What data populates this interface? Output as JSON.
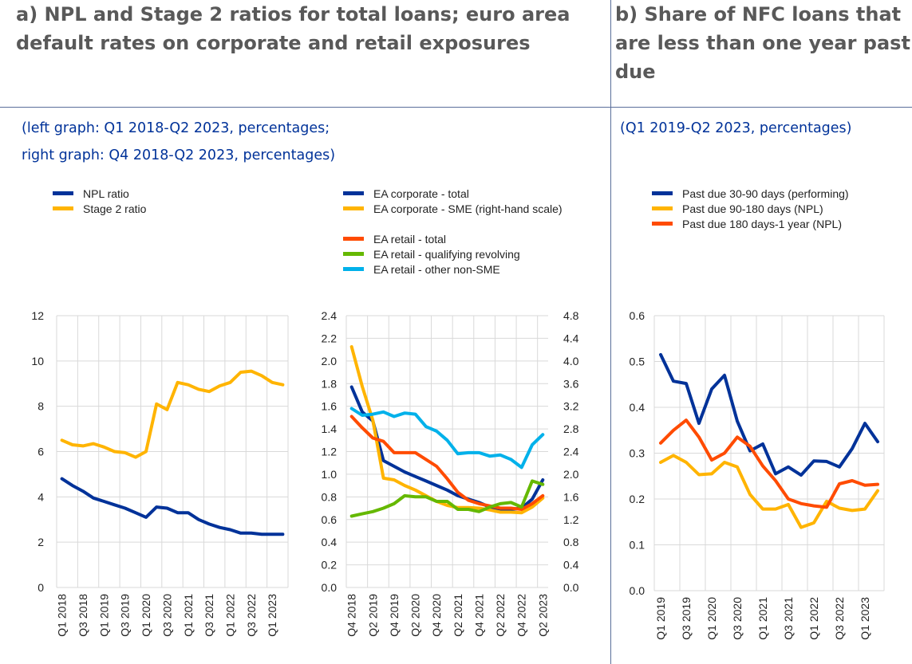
{
  "panels": {
    "a": {
      "title_lines": [
        "a) NPL and Stage 2 ratios for total loans; euro area",
        "default rates on corporate and retail exposures"
      ],
      "subtitle_lines": [
        "(left graph: Q1 2018-Q2 2023, percentages;",
        "right graph: Q4 2018-Q2 2023, percentages)"
      ]
    },
    "b": {
      "title_lines": [
        "b) Share of NFC loans that",
        "are less than one year past",
        "due"
      ],
      "subtitle_lines": [
        "(Q1 2019-Q2 2023, percentages)"
      ]
    }
  },
  "chart_data": [
    {
      "id": "npl-stage2",
      "type": "line",
      "title": "",
      "xlabel": "",
      "ylabel": "",
      "ylim": [
        0,
        12
      ],
      "yticks": [
        0,
        2,
        4,
        6,
        8,
        10,
        12
      ],
      "ytick_labels": [
        "0",
        "2",
        "4",
        "6",
        "8",
        "10",
        "12"
      ],
      "grid": true,
      "legend": "top-left",
      "x": [
        "Q1 2018",
        "Q2 2018",
        "Q3 2018",
        "Q4 2018",
        "Q1 2019",
        "Q2 2019",
        "Q3 2019",
        "Q4 2019",
        "Q1 2020",
        "Q2 2020",
        "Q3 2020",
        "Q4 2020",
        "Q1 2021",
        "Q2 2021",
        "Q3 2021",
        "Q4 2021",
        "Q1 2022",
        "Q2 2022",
        "Q3 2022",
        "Q4 2022",
        "Q1 2023",
        "Q2 2023"
      ],
      "xtick_labels": [
        "Q1 2018",
        "Q3 2018",
        "Q1 2019",
        "Q3 2019",
        "Q1 2020",
        "Q3 2020",
        "Q1 2021",
        "Q3 2021",
        "Q1 2022",
        "Q3 2022",
        "Q1 2023"
      ],
      "series": [
        {
          "name": "NPL ratio",
          "color": "#003299",
          "axis": "left",
          "values": [
            4.8,
            4.5,
            4.25,
            3.95,
            3.8,
            3.65,
            3.5,
            3.3,
            3.1,
            3.55,
            3.5,
            3.3,
            3.3,
            3.0,
            2.8,
            2.65,
            2.55,
            2.4,
            2.4,
            2.35,
            2.35,
            2.35
          ]
        },
        {
          "name": "Stage 2 ratio",
          "color": "#ffb400",
          "axis": "left",
          "values": [
            6.5,
            6.3,
            6.25,
            6.35,
            6.2,
            6.0,
            5.95,
            5.75,
            6.0,
            8.1,
            7.85,
            9.05,
            8.95,
            8.75,
            8.65,
            8.9,
            9.05,
            9.5,
            9.55,
            9.35,
            9.05,
            8.95
          ]
        }
      ]
    },
    {
      "id": "default-rates",
      "type": "line",
      "title": "",
      "xlabel": "",
      "ylabel": "",
      "ylim": [
        0,
        2.4
      ],
      "y2lim": [
        0,
        4.8
      ],
      "yticks": [
        0,
        0.2,
        0.4,
        0.6,
        0.8,
        1.0,
        1.2,
        1.4,
        1.6,
        1.8,
        2.0,
        2.2,
        2.4
      ],
      "ytick_labels": [
        "0.0",
        "0.2",
        "0.4",
        "0.6",
        "0.8",
        "1.0",
        "1.2",
        "1.4",
        "1.6",
        "1.8",
        "2.0",
        "2.2",
        "2.4"
      ],
      "y2ticks": [
        0,
        0.4,
        0.8,
        1.2,
        1.6,
        2.0,
        2.4,
        2.8,
        3.2,
        3.6,
        4.0,
        4.4,
        4.8
      ],
      "y2tick_labels": [
        "0.0",
        "0.4",
        "0.8",
        "1.2",
        "1.6",
        "2.0",
        "2.4",
        "2.8",
        "3.2",
        "3.6",
        "4.0",
        "4.4",
        "4.8"
      ],
      "grid": true,
      "legend": "top",
      "x": [
        "Q4 2018",
        "Q1 2019",
        "Q2 2019",
        "Q3 2019",
        "Q4 2019",
        "Q1 2020",
        "Q2 2020",
        "Q3 2020",
        "Q4 2020",
        "Q1 2021",
        "Q2 2021",
        "Q3 2021",
        "Q4 2021",
        "Q1 2022",
        "Q2 2022",
        "Q3 2022",
        "Q4 2022",
        "Q1 2023",
        "Q2 2023"
      ],
      "xtick_labels": [
        "Q4 2018",
        "Q2 2019",
        "Q4 2019",
        "Q2 2020",
        "Q4 2020",
        "Q2 2021",
        "Q4 2021",
        "Q2 2022",
        "Q4 2022",
        "Q2 2023"
      ],
      "series": [
        {
          "name": "EA corporate - total",
          "color": "#003299",
          "axis": "left",
          "values": [
            1.77,
            1.55,
            1.47,
            1.12,
            1.07,
            1.02,
            0.98,
            0.94,
            0.9,
            0.86,
            0.81,
            0.78,
            0.75,
            0.71,
            0.69,
            0.69,
            0.7,
            0.78,
            0.95
          ]
        },
        {
          "name": "EA corporate - SME (right-hand scale)",
          "color": "#ffb400",
          "axis": "right",
          "values": [
            4.25,
            3.55,
            2.95,
            1.93,
            1.9,
            1.8,
            1.72,
            1.62,
            1.52,
            1.45,
            1.41,
            1.41,
            1.4,
            1.37,
            1.33,
            1.33,
            1.32,
            1.42,
            1.58
          ]
        },
        {
          "name": "EA retail - total",
          "color": "#ff4b00",
          "axis": "left",
          "values": [
            1.51,
            1.41,
            1.32,
            1.29,
            1.19,
            1.19,
            1.19,
            1.13,
            1.07,
            0.96,
            0.84,
            0.77,
            0.74,
            0.72,
            0.7,
            0.7,
            0.69,
            0.74,
            0.81
          ]
        },
        {
          "name": "EA retail - qualifying revolving",
          "color": "#65b800",
          "axis": "left",
          "values": [
            0.63,
            0.65,
            0.67,
            0.7,
            0.74,
            0.81,
            0.8,
            0.8,
            0.76,
            0.76,
            0.69,
            0.69,
            0.67,
            0.71,
            0.74,
            0.75,
            0.71,
            0.94,
            0.91
          ]
        },
        {
          "name": "EA retail - other non-SME",
          "color": "#00b1ea",
          "axis": "left",
          "values": [
            1.58,
            1.52,
            1.53,
            1.55,
            1.51,
            1.54,
            1.53,
            1.42,
            1.38,
            1.3,
            1.18,
            1.19,
            1.19,
            1.16,
            1.17,
            1.13,
            1.06,
            1.26,
            1.35
          ]
        }
      ]
    },
    {
      "id": "past-due",
      "type": "line",
      "title": "",
      "xlabel": "",
      "ylabel": "",
      "ylim": [
        0,
        0.6
      ],
      "yticks": [
        0,
        0.1,
        0.2,
        0.3,
        0.4,
        0.5,
        0.6
      ],
      "ytick_labels": [
        "0.0",
        "0.1",
        "0.2",
        "0.3",
        "0.4",
        "0.5",
        "0.6"
      ],
      "grid": true,
      "legend": "top",
      "x": [
        "Q1 2019",
        "Q2 2019",
        "Q3 2019",
        "Q4 2019",
        "Q1 2020",
        "Q2 2020",
        "Q3 2020",
        "Q4 2020",
        "Q1 2021",
        "Q2 2021",
        "Q3 2021",
        "Q4 2021",
        "Q1 2022",
        "Q2 2022",
        "Q3 2022",
        "Q4 2022",
        "Q1 2023",
        "Q2 2023"
      ],
      "xtick_labels": [
        "Q1 2019",
        "Q3 2019",
        "Q1 2020",
        "Q3 2020",
        "Q1 2021",
        "Q3 2021",
        "Q1 2022",
        "Q3 2022",
        "Q1 2023"
      ],
      "series": [
        {
          "name": "Past due 30-90 days (performing)",
          "color": "#003299",
          "axis": "left",
          "values": [
            0.515,
            0.457,
            0.452,
            0.365,
            0.44,
            0.47,
            0.37,
            0.305,
            0.32,
            0.255,
            0.27,
            0.252,
            0.283,
            0.282,
            0.27,
            0.31,
            0.365,
            0.325
          ]
        },
        {
          "name": "Past due 90-180 days (NPL)",
          "color": "#ffb400",
          "axis": "left",
          "values": [
            0.28,
            0.295,
            0.28,
            0.253,
            0.255,
            0.28,
            0.27,
            0.21,
            0.178,
            0.178,
            0.188,
            0.138,
            0.148,
            0.195,
            0.18,
            0.175,
            0.178,
            0.218
          ]
        },
        {
          "name": "Past due 180 days-1 year (NPL)",
          "color": "#ff4b00",
          "axis": "left",
          "values": [
            0.322,
            0.35,
            0.372,
            0.335,
            0.285,
            0.3,
            0.335,
            0.315,
            0.272,
            0.24,
            0.2,
            0.19,
            0.185,
            0.182,
            0.233,
            0.24,
            0.23,
            0.232
          ]
        }
      ]
    }
  ]
}
